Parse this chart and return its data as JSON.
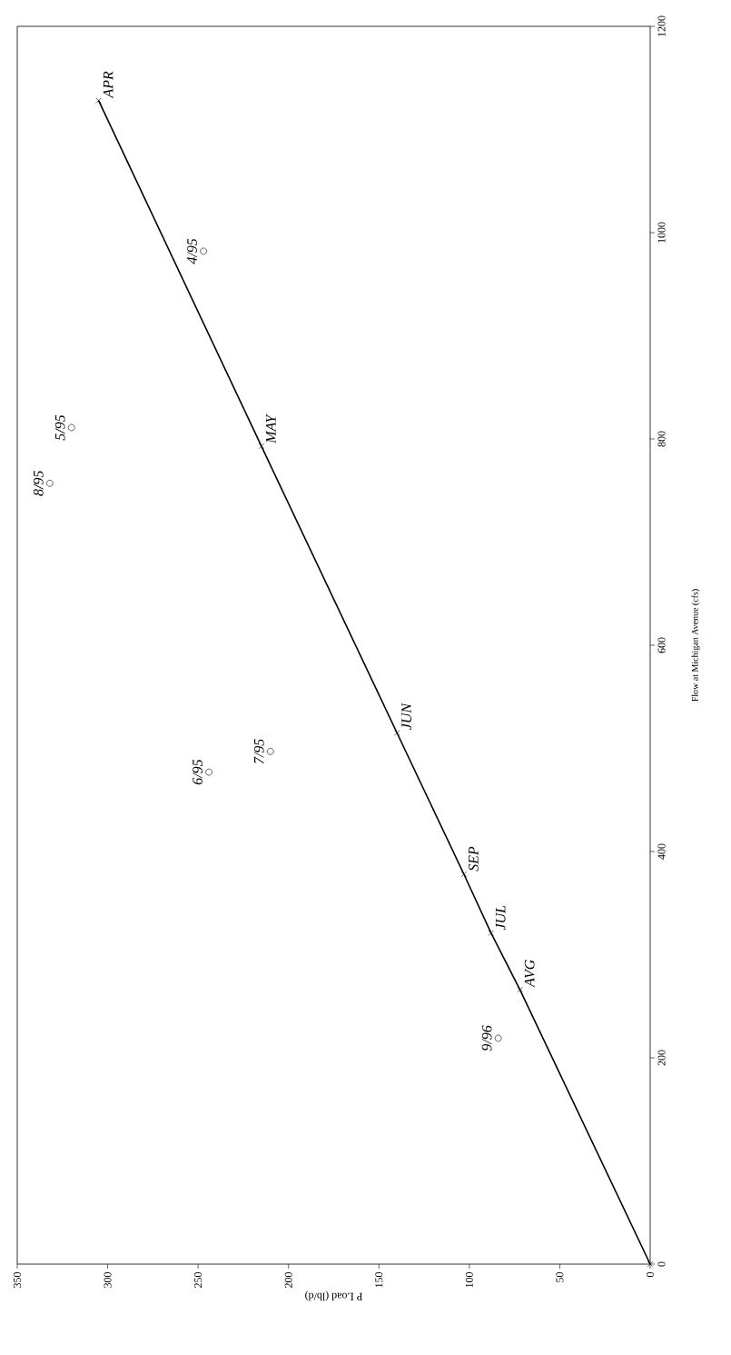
{
  "chart_data": {
    "type": "line",
    "xlabel": "P Load (lb/d)",
    "ylabel": "Flow at Michigan Avenue (cfs)",
    "xlim": [
      350,
      0
    ],
    "xticks": [
      350,
      300,
      250,
      200,
      150,
      100,
      50,
      0
    ],
    "ylim": [
      0,
      1200
    ],
    "yticks": [
      0,
      200,
      400,
      600,
      800,
      1000,
      1200
    ],
    "grid": false,
    "series": [
      {
        "color": "#000000",
        "marker": "cross",
        "line_style": "solid",
        "x": [
          0,
          72,
          88,
          103,
          140,
          215,
          305
        ],
        "values": [
          0,
          266,
          321,
          378,
          515,
          793,
          1128
        ]
      },
      {
        "type": "scatter",
        "color": "#000000",
        "marker": "circle",
        "x": [
          247,
          320,
          332,
          244,
          210,
          84
        ],
        "values": [
          982,
          811,
          757,
          477,
          497,
          219
        ]
      }
    ],
    "annotations": [
      {
        "text": "APR",
        "x": 305,
        "y": 1128
      },
      {
        "text": "MAY",
        "x": 215,
        "y": 793
      },
      {
        "text": "JUN",
        "x": 140,
        "y": 515
      },
      {
        "text": "SEP",
        "x": 103,
        "y": 378
      },
      {
        "text": "JUL",
        "x": 88,
        "y": 321
      },
      {
        "text": "AVG",
        "x": 72,
        "y": 266
      },
      {
        "text": "4/95",
        "x": 247,
        "y": 982
      },
      {
        "text": "5/95",
        "x": 320,
        "y": 811
      },
      {
        "text": "8/95",
        "x": 332,
        "y": 757
      },
      {
        "text": "6/95",
        "x": 244,
        "y": 477
      },
      {
        "text": "7/95",
        "x": 210,
        "y": 497
      },
      {
        "text": "9/96",
        "x": 84,
        "y": 219
      }
    ]
  }
}
